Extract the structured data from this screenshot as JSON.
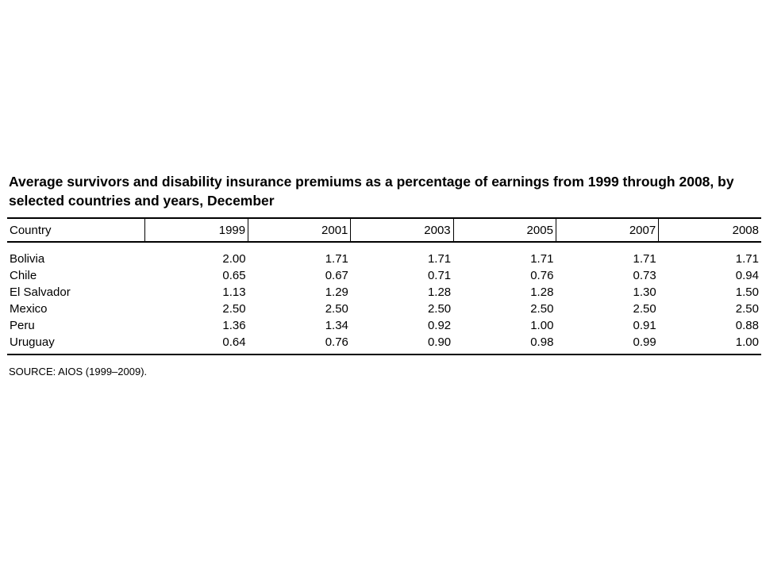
{
  "title": "Average survivors and disability insurance premiums as a percentage of earnings from 1999 through 2008, by selected countries and years, December",
  "columns": [
    "Country",
    "1999",
    "2001",
    "2003",
    "2005",
    "2007",
    "2008"
  ],
  "rows": [
    {
      "country": "Bolivia",
      "values": [
        "2.00",
        "1.71",
        "1.71",
        "1.71",
        "1.71",
        "1.71"
      ]
    },
    {
      "country": "Chile",
      "values": [
        "0.65",
        "0.67",
        "0.71",
        "0.76",
        "0.73",
        "0.94"
      ]
    },
    {
      "country": "El Salvador",
      "values": [
        "1.13",
        "1.29",
        "1.28",
        "1.28",
        "1.30",
        "1.50"
      ]
    },
    {
      "country": "Mexico",
      "values": [
        "2.50",
        "2.50",
        "2.50",
        "2.50",
        "2.50",
        "2.50"
      ]
    },
    {
      "country": "Peru",
      "values": [
        "1.36",
        "1.34",
        "0.92",
        "1.00",
        "0.91",
        "0.88"
      ]
    },
    {
      "country": "Uruguay",
      "values": [
        "0.64",
        "0.76",
        "0.90",
        "0.98",
        "0.99",
        "1.00"
      ]
    }
  ],
  "source": "SOURCE: AIOS (1999–2009)."
}
